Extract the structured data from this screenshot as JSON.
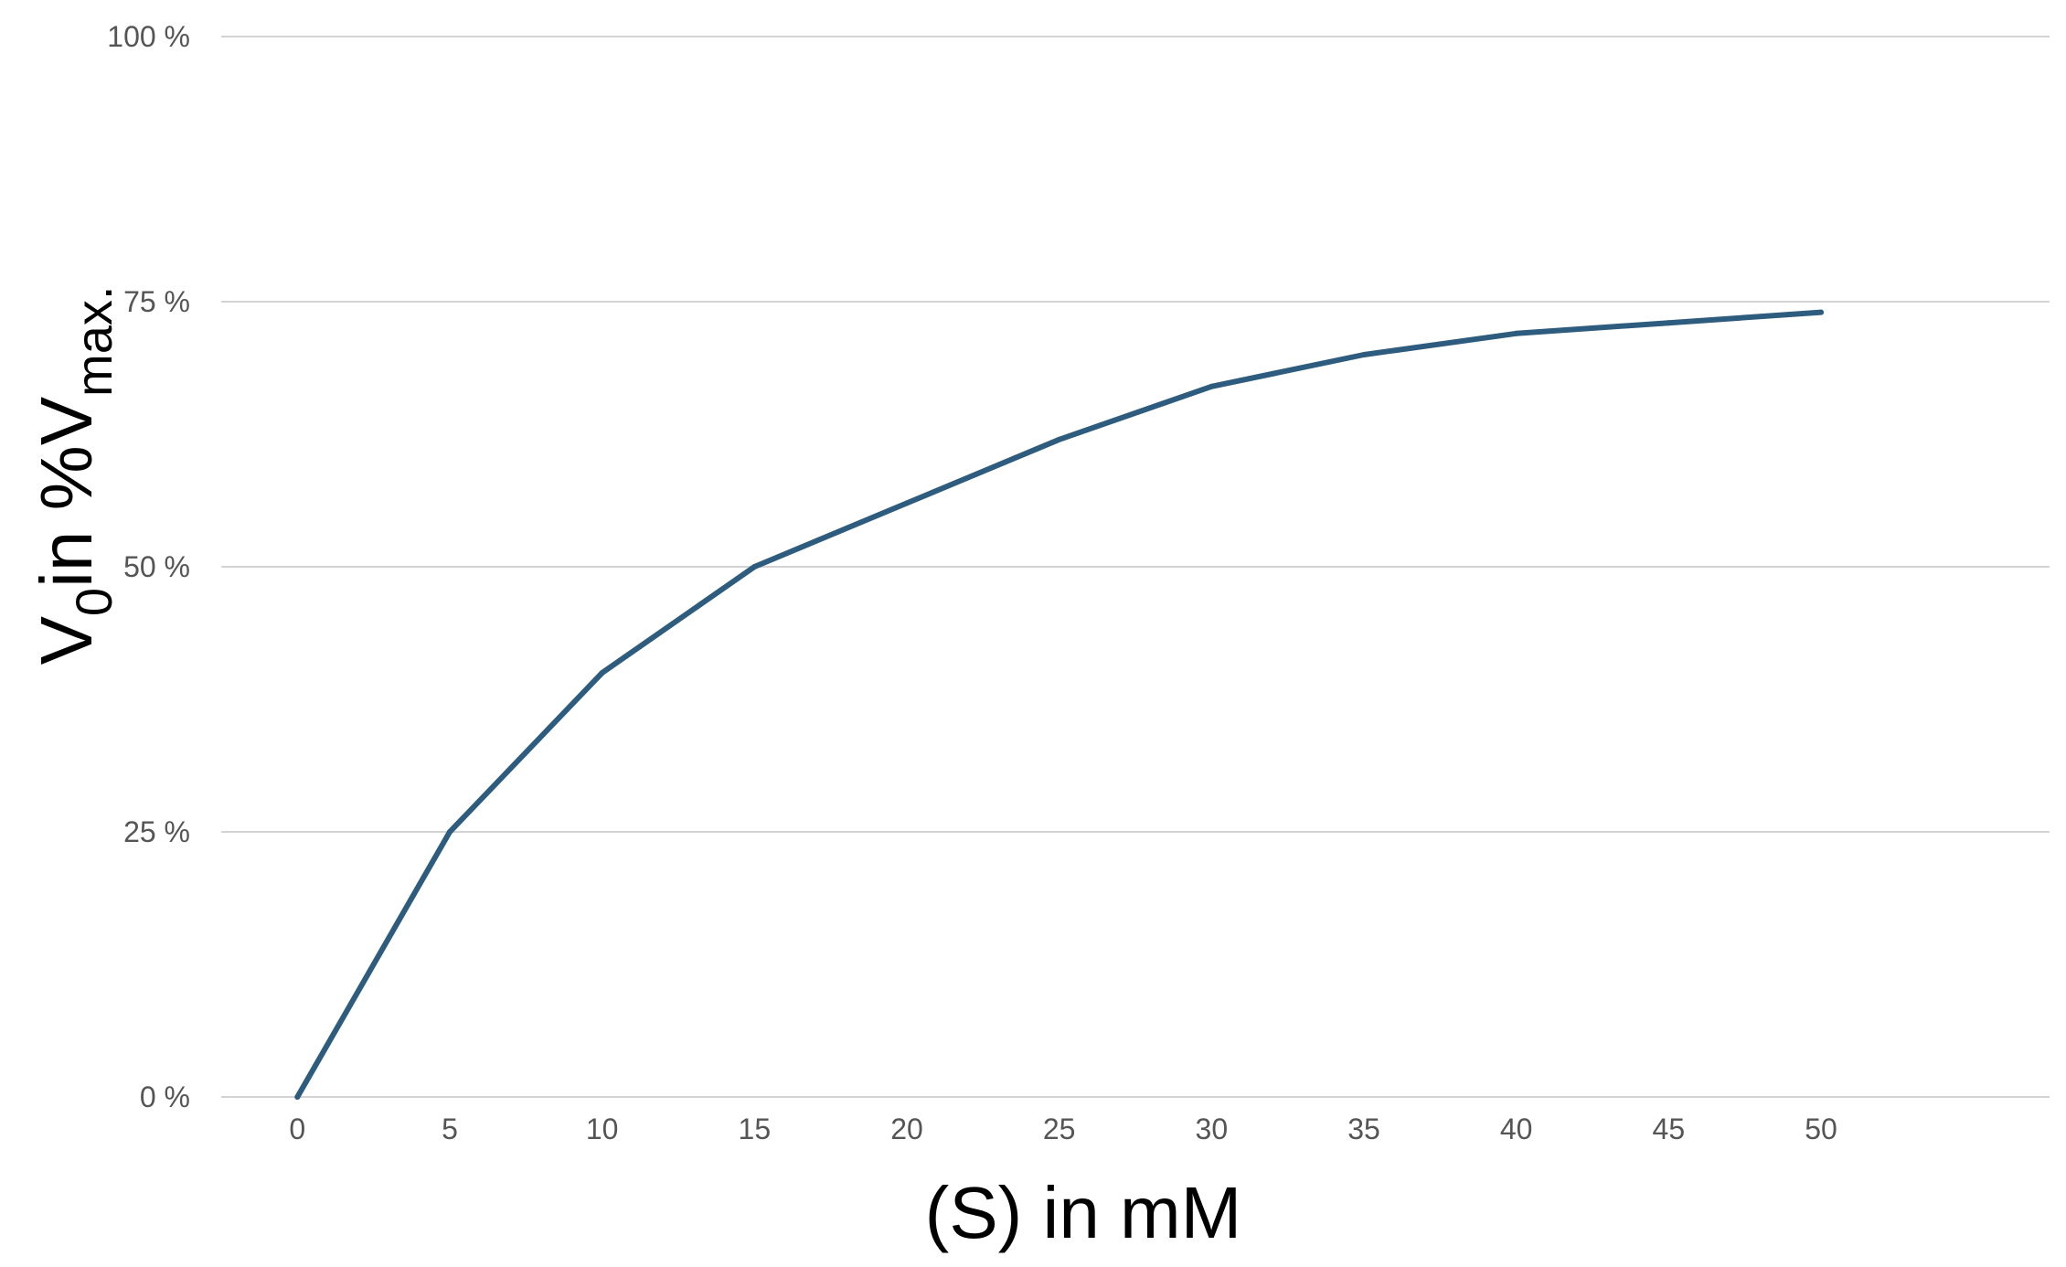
{
  "chart_data": {
    "type": "line",
    "title": "",
    "xlabel": "(S) in mM",
    "ylabel": {
      "parts": [
        {
          "text": "V",
          "sub": false
        },
        {
          "text": "0",
          "sub": true
        },
        {
          "text": "in %V",
          "sub": false
        },
        {
          "text": "max.",
          "sub": true
        }
      ]
    },
    "x_ticks": [
      0,
      5,
      10,
      15,
      20,
      25,
      30,
      35,
      40,
      45,
      50
    ],
    "y_ticks": [
      {
        "value": 0,
        "label": "0 %"
      },
      {
        "value": 25,
        "label": "25 %"
      },
      {
        "value": 50,
        "label": "50 %"
      },
      {
        "value": 75,
        "label": "75 %"
      },
      {
        "value": 100,
        "label": "100 %"
      }
    ],
    "xlim": [
      -2.5,
      57.5
    ],
    "ylim": [
      0,
      100
    ],
    "grid": "horizontal",
    "legend": "none",
    "series": [
      {
        "color": "#2e5c7e",
        "points": [
          [
            0,
            0
          ],
          [
            5,
            25
          ],
          [
            10,
            40
          ],
          [
            15,
            50
          ],
          [
            20,
            56
          ],
          [
            25,
            62
          ],
          [
            30,
            67
          ],
          [
            35,
            70
          ],
          [
            40,
            72
          ],
          [
            45,
            73
          ],
          [
            50,
            74
          ]
        ]
      }
    ],
    "colors": {
      "grid": "#d3d3d3",
      "tick_text": "#555555",
      "axis_title": "#000000"
    }
  }
}
